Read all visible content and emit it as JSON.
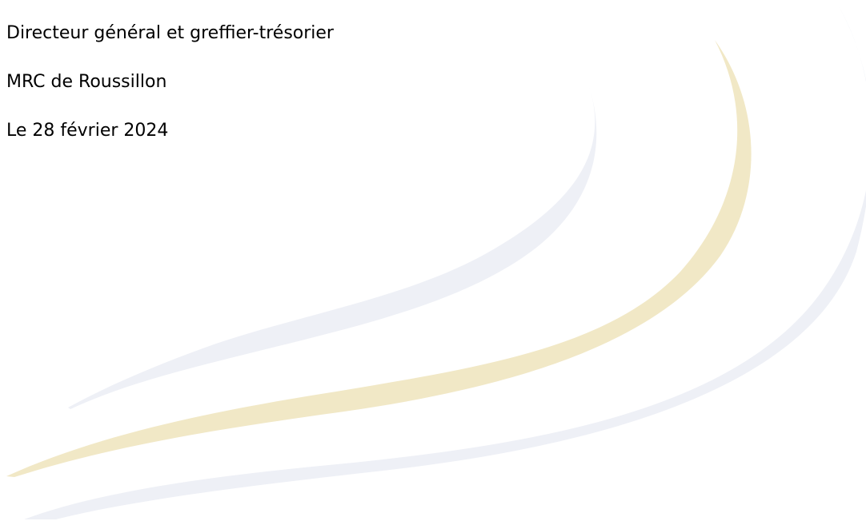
{
  "signature": {
    "title": "Directeur général et greffier-trésorier",
    "organization": "MRC de Roussillon",
    "date": "Le 28 février 2024"
  },
  "decoration": {
    "swoosh_colors": [
      "#eef0f6",
      "#f1e8c6",
      "#eef0f6"
    ]
  }
}
